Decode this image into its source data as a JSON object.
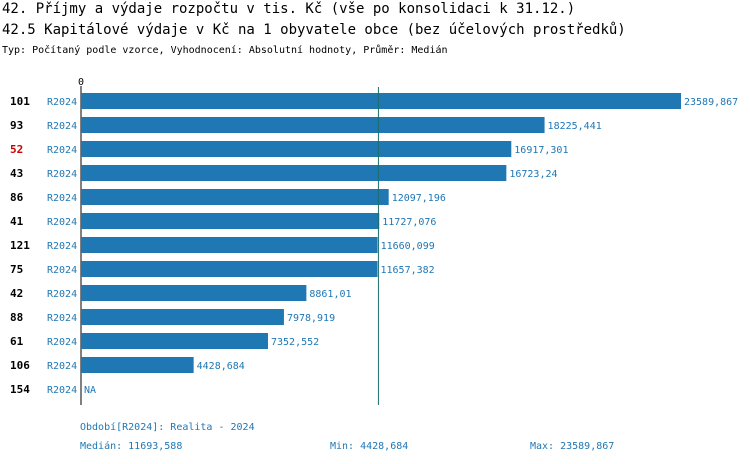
{
  "header": {
    "title": "42. Příjmy a výdaje rozpočtu v tis. Kč (vše po konsolidaci k 31.12.)",
    "subtitle": "42.5 Kapitálové výdaje v Kč na 1 obyvatele obce (bez účelových prostředků)",
    "description": "Typ: Počítaný podle vzorce, Vyhodnocení: Absolutní hodnoty, Průměr: Medián"
  },
  "colors": {
    "bar": "#1f77b4",
    "label": "#1f77b4",
    "highlight": "#cc0000",
    "median_line": "#1a6e6e"
  },
  "chart_data": {
    "type": "bar",
    "orientation": "horizontal",
    "x_tick_label": "0",
    "xlim": [
      0,
      23589.867
    ],
    "median": 11693.588,
    "highlight_category": "52",
    "categories": [
      "101",
      "93",
      "52",
      "43",
      "86",
      "41",
      "121",
      "75",
      "42",
      "88",
      "61",
      "106",
      "154"
    ],
    "period_labels": [
      "R2024",
      "R2024",
      "R2024",
      "R2024",
      "R2024",
      "R2024",
      "R2024",
      "R2024",
      "R2024",
      "R2024",
      "R2024",
      "R2024",
      "R2024"
    ],
    "values": [
      23589.867,
      18225.441,
      16917.301,
      16723.24,
      12097.196,
      11727.076,
      11660.099,
      11657.382,
      8861.01,
      7978.919,
      7352.552,
      4428.684,
      null
    ],
    "value_labels": [
      "23589,867",
      "18225,441",
      "16917,301",
      "16723,24",
      "12097,196",
      "11727,076",
      "11660,099",
      "11657,382",
      "8861,01",
      "7978,919",
      "7352,552",
      "4428,684",
      "NA"
    ]
  },
  "footer": {
    "period": "Období[R2024]: Realita - 2024",
    "median": "Medián: 11693,588",
    "min": "Min: 4428,684",
    "max": "Max: 23589,867"
  }
}
